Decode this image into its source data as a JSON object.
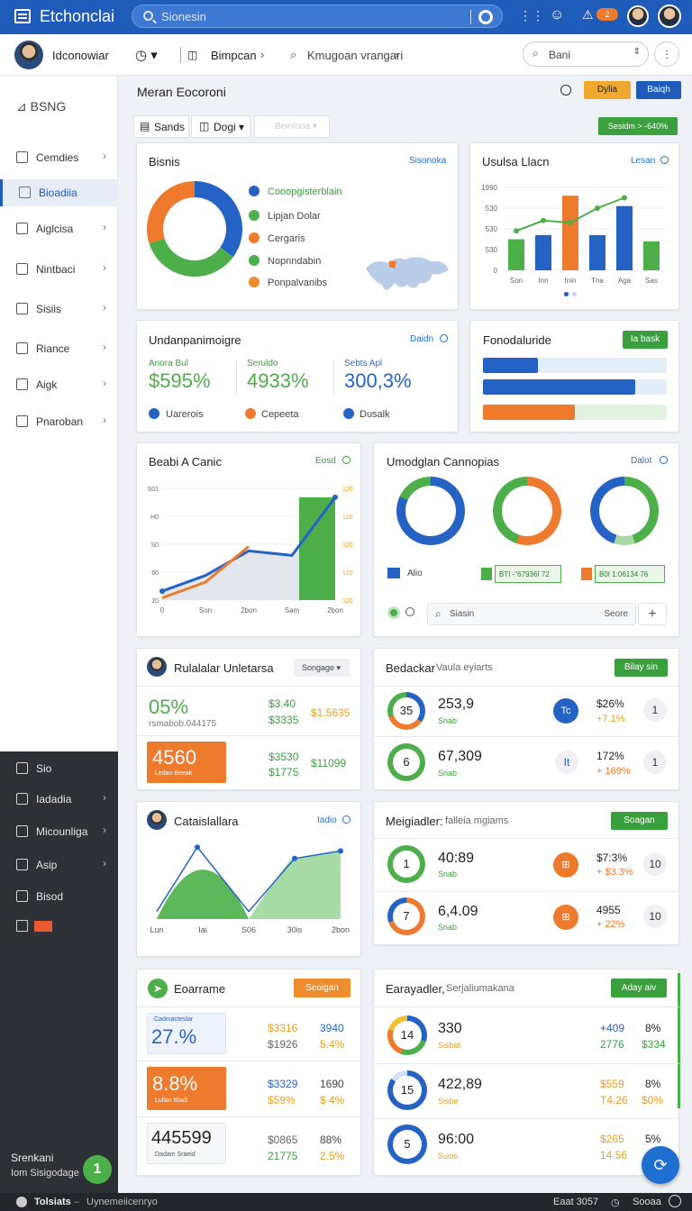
{
  "topbar": {
    "title": "Etchonclai",
    "search_placeholder": "Sionesin",
    "notif_count": "2"
  },
  "subbar": {
    "user": "Idconowiar",
    "item1": "Bimpcan",
    "item2": "Kmugoan vrangari",
    "search": "Bani"
  },
  "sidebar": {
    "brand": "BSNG",
    "items": [
      {
        "label": "Cemdies"
      },
      {
        "label": "Bioadiia"
      },
      {
        "label": "Aiglcisa"
      },
      {
        "label": "Nintbaci"
      },
      {
        "label": "Sisiis"
      },
      {
        "label": "Riance"
      },
      {
        "label": "Aigk"
      },
      {
        "label": "Pnaroban"
      }
    ],
    "dark_items": [
      {
        "label": "Sio"
      },
      {
        "label": "Iadadia"
      },
      {
        "label": "Micounliga"
      },
      {
        "label": "Asip"
      },
      {
        "label": "Bisod"
      }
    ],
    "bottom_name": "Srenkani",
    "bottom_sub": "Iom Sisigodage"
  },
  "header": {
    "title": "Meran Eocoroni",
    "btn_yellow": "Dylia",
    "btn_blue": "Baiqh",
    "tab1": "Sands",
    "tab2": "Dogi",
    "tab3": "Beinlooa",
    "badge": "Sesidm > -640%"
  },
  "colors": {
    "blue": "#2463c4",
    "orange": "#ee7a2e",
    "green": "#4caf4a"
  },
  "card_donut": {
    "title": "Bisnis",
    "link": "Sisonoka",
    "legend": [
      "Cooopgisterblain",
      "Lipjan Dolar",
      "Cergaris",
      "Nopnndabin",
      "Ponpalvanibs"
    ],
    "chart_data": {
      "type": "pie",
      "labels": [
        "Blue",
        "Green",
        "Orange"
      ],
      "values": [
        35,
        35,
        30
      ]
    }
  },
  "card_bars": {
    "title": "Usulsa Llacn",
    "link": "Lesan",
    "chart_data": {
      "type": "bar",
      "categories": [
        "Son",
        "Inn",
        "Inin",
        "Tna",
        "Aga",
        "Sas"
      ],
      "series": [
        {
          "values": [
            150,
            170,
            360,
            170,
            310,
            140
          ],
          "colors": [
            "#4caf4a",
            "#2463c4",
            "#ee7a2e",
            "#2463c4",
            "#2463c4",
            "#4caf4a"
          ]
        },
        {
          "values": [
            190,
            240,
            230,
            300,
            350,
            null
          ]
        }
      ],
      "yticks": [
        "1990",
        "530",
        "530",
        "530",
        "0"
      ],
      "ylim": [
        0,
        400
      ]
    }
  },
  "card_stats": {
    "title": "Undanpanimoigre",
    "link": "Daidn",
    "stats": [
      {
        "label": "Anora Bul",
        "value": "$595%"
      },
      {
        "label": "Seruldo",
        "value": "4933%"
      },
      {
        "label": "Sebts Apl",
        "value": "300,3%"
      }
    ],
    "legend": [
      "Uarerois",
      "Cepeeta",
      "Dusalk"
    ]
  },
  "card_progress": {
    "title": "Fonodaluride",
    "btn": "Ia bask",
    "bars": [
      0.3,
      0.83,
      0.5
    ]
  },
  "card_line": {
    "title": "Beabi A Canic",
    "link": "Eosd",
    "chart_data": {
      "type": "area",
      "x": [
        "0",
        "Son",
        "2bon",
        "Sam",
        "2bon"
      ],
      "yticks_left": [
        "S01",
        "H0",
        "S0",
        "60",
        "20"
      ],
      "yticks_right": [
        "120",
        "120",
        "120",
        "120",
        "120"
      ],
      "series": [
        {
          "name": "",
          "values": [
            20,
            55,
            110,
            100,
            230
          ]
        },
        {
          "name": "",
          "values": [
            5,
            40,
            120,
            60,
            10
          ]
        }
      ],
      "ylim": [
        0,
        250
      ]
    }
  },
  "card_rings": {
    "title": "Umodglan Cannopias",
    "link": "Dalot",
    "legend": [
      "Alio",
      "BTI -\"67936İ 72",
      "B0I 1:06134 76"
    ],
    "search": "Siasin",
    "search_btn": "Seore"
  },
  "card_people": {
    "title": "Rulalalar Unletarsa",
    "dropdown": "Songage",
    "rows": [
      {
        "big": "05%",
        "sub": "rsmabob.044175",
        "v1": "$3.40",
        "v2": "$3335",
        "v3": "$1.5635"
      },
      {
        "big": "4560",
        "sub": "Ledan Beeak",
        "v1": "$3530",
        "v2": "$1775",
        "v3": "$11099"
      }
    ]
  },
  "card_bedackar": {
    "title": "Bedackar",
    "subtitle": "Vaula eyiarts",
    "btn": "Bilay sin",
    "rows": [
      {
        "ring": "35",
        "val": "253,9",
        "sub": "Snab",
        "p1": "$26%",
        "p2": "+7.1%",
        "btn": "1",
        "icon": "Tc"
      },
      {
        "ring": "6",
        "val": "67,309",
        "sub": "Snab",
        "p1": "172%",
        "p2": "+ 169%",
        "btn": "1",
        "icon": "It"
      }
    ]
  },
  "card_area": {
    "title": "Cataislallara",
    "link": "Iadio",
    "chart_data": {
      "type": "area",
      "x": [
        "Lun",
        "Iai",
        "S06",
        "30is",
        "2bon"
      ],
      "series": [
        {
          "name": "",
          "values": [
            10,
            95,
            10,
            80,
            90
          ]
        }
      ],
      "ylim": [
        0,
        100
      ]
    }
  },
  "card_meigiadler": {
    "title": "Meigiadler:",
    "subtitle": "falleia mgiams",
    "btn": "Soagan",
    "rows": [
      {
        "ring": "1",
        "val": "40:89",
        "sub": "Snab",
        "p1": "$7:3%",
        "p2": "+ $3.3%",
        "btn": "10"
      },
      {
        "ring": "7",
        "val": "6,4.09",
        "sub": "Snab",
        "p1": "4955",
        "p2": "+ 22%",
        "btn": "10"
      }
    ]
  },
  "card_eoarrame": {
    "title": "Eoarrame",
    "btn": "Seoigan",
    "rows": [
      {
        "big": "27.%",
        "sub": "Cadmacteslar",
        "v1": "$3316",
        "v2": "$1926",
        "v3": "3940",
        "v4": "5.4%"
      },
      {
        "big": "8.8%",
        "sub": "Lullan Biadi",
        "v1": "$3329",
        "v2": "$59%",
        "v3": "1690",
        "v4": "$ 4%"
      },
      {
        "big": "445599",
        "sub": "Dadam Sraeid",
        "v1": "$0865",
        "v2": "21775",
        "v3": "88%",
        "v4": "2.5%"
      }
    ]
  },
  "card_earayadler": {
    "title": "Earayadler,",
    "subtitle": "Serjaliumakana",
    "btn": "Aday aiv",
    "rows": [
      {
        "ring": "14",
        "val": "330",
        "sub": "Sisbat",
        "p1": "+409",
        "p2": "2776",
        "p3": "8%",
        "p4": "$334"
      },
      {
        "ring": "15",
        "val": "422,89",
        "sub": "Sisbe",
        "p1": "$559",
        "p2": "T4.26",
        "p3": "8%",
        "p4": "$0%"
      },
      {
        "ring": "5",
        "val": "96:00",
        "sub": "Sucis",
        "p1": "$265",
        "p2": "14.56",
        "p3": "5%",
        "p4": "$0%"
      }
    ]
  },
  "footer": {
    "left": "Tolsiats",
    "mid": "Uynemeiicenryo",
    "right": "Eaat 3057",
    "right2": "Sooaa"
  },
  "fab": {
    "label": "1"
  }
}
